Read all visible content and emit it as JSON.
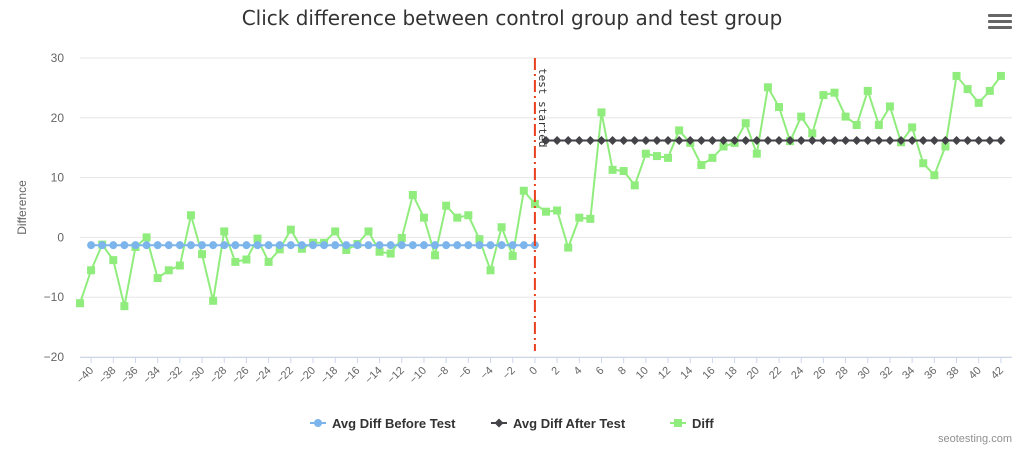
{
  "menu": {
    "icon": "hamburger-menu-icon"
  },
  "credits": "seotesting.com",
  "colors": {
    "before": "#7cb5ec",
    "after": "#434348",
    "diff": "#90ed7d",
    "plotline": "#e8401c",
    "grid": "#e6e6e6",
    "axis": "#ccd6eb",
    "text": "#666666"
  },
  "chart_data": {
    "type": "line",
    "title": "Click difference between control group and test group",
    "xlabel": "",
    "ylabel": "Difference",
    "xlim": [
      -41,
      43
    ],
    "ylim": [
      -20,
      30
    ],
    "y_ticks": [
      -20,
      -10,
      0,
      10,
      20,
      30
    ],
    "x_ticks": [
      -40,
      -38,
      -36,
      -34,
      -32,
      -30,
      -28,
      -26,
      -24,
      -22,
      -20,
      -18,
      -16,
      -14,
      -12,
      -10,
      -8,
      -6,
      -4,
      -2,
      0,
      2,
      4,
      6,
      8,
      10,
      12,
      14,
      16,
      18,
      20,
      22,
      24,
      26,
      28,
      30,
      32,
      34,
      36,
      38,
      40,
      42
    ],
    "grid": true,
    "legend_position": "bottom-center",
    "plot_line": {
      "x": 0,
      "label": "test started"
    },
    "series": [
      {
        "name": "Avg Diff Before Test",
        "marker": "circle",
        "x_start": -40,
        "values": [
          -1.3,
          -1.3,
          -1.3,
          -1.3,
          -1.3,
          -1.3,
          -1.3,
          -1.3,
          -1.3,
          -1.3,
          -1.3,
          -1.3,
          -1.3,
          -1.3,
          -1.3,
          -1.3,
          -1.3,
          -1.3,
          -1.3,
          -1.3,
          -1.3,
          -1.3,
          -1.3,
          -1.3,
          -1.3,
          -1.3,
          -1.3,
          -1.3,
          -1.3,
          -1.3,
          -1.3,
          -1.3,
          -1.3,
          -1.3,
          -1.3,
          -1.3,
          -1.3,
          -1.3,
          -1.3,
          -1.3,
          -1.3
        ]
      },
      {
        "name": "Avg Diff After Test",
        "marker": "diamond",
        "x_start": 1,
        "values": [
          16.2,
          16.2,
          16.2,
          16.2,
          16.2,
          16.2,
          16.2,
          16.2,
          16.2,
          16.2,
          16.2,
          16.2,
          16.2,
          16.2,
          16.2,
          16.2,
          16.2,
          16.2,
          16.2,
          16.2,
          16.2,
          16.2,
          16.2,
          16.2,
          16.2,
          16.2,
          16.2,
          16.2,
          16.2,
          16.2,
          16.2,
          16.2,
          16.2,
          16.2,
          16.2,
          16.2,
          16.2,
          16.2,
          16.2,
          16.2,
          16.2,
          16.2
        ]
      },
      {
        "name": "Diff",
        "marker": "square",
        "x_start": -41,
        "values": [
          -11,
          -5.5,
          -1.2,
          -3.8,
          -11.5,
          -1.6,
          0,
          -6.8,
          -5.5,
          -4.7,
          3.7,
          -2.8,
          -10.6,
          1,
          -4.1,
          -3.7,
          -0.2,
          -4.1,
          -2,
          1.3,
          -1.9,
          -0.9,
          -0.9,
          1,
          -2.1,
          -1.1,
          1,
          -2.4,
          -2.7,
          -0.1,
          7.1,
          3.3,
          -3,
          5.3,
          3.3,
          3.7,
          -0.3,
          -5.5,
          1.7,
          -3.1,
          7.8,
          5.6,
          4.3,
          4.5,
          -1.7,
          3.3,
          3.1,
          20.9,
          11.3,
          11.1,
          8.7,
          14,
          13.6,
          13.3,
          17.9,
          15.8,
          12.1,
          13.3,
          15.2,
          15.8,
          19.1,
          14,
          25.1,
          21.8,
          16.1,
          20.2,
          17.4,
          23.8,
          24.2,
          20.2,
          18.8,
          24.5,
          18.8,
          21.9,
          15.9,
          18.4,
          12.4,
          10.4,
          15.2,
          27,
          24.8,
          22.5,
          24.5,
          27
        ]
      }
    ]
  }
}
